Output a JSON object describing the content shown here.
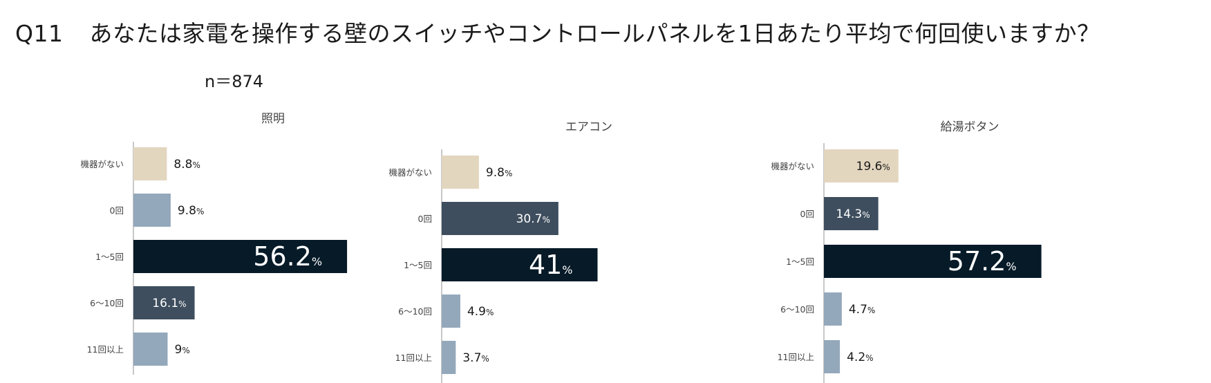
{
  "question": {
    "number": "Q11",
    "text": "あなたは家電を操作する壁のスイッチやコントロールパネルを1日あたり平均で何回使いますか？"
  },
  "sample_size": "n＝874",
  "colors": {
    "none": "#e3d6bf",
    "zero": "#94a8bb",
    "mid": "#3e4e5e",
    "top": "#061a28",
    "axis": "#c8c8c8"
  },
  "chart_data": [
    {
      "type": "bar",
      "orientation": "horizontal",
      "title": "照明",
      "categories": [
        "機器がない",
        "0回",
        "1〜5回",
        "6〜10回",
        "11回以上"
      ],
      "values": [
        8.8,
        9.8,
        56.2,
        16.1,
        9
      ],
      "value_labels": [
        "8.8",
        "9.8",
        "56.2",
        "16.1",
        "9"
      ],
      "unit": "%",
      "bar_colors": [
        "#e3d6bf",
        "#94a8bb",
        "#061a28",
        "#3e4e5e",
        "#94a8bb"
      ]
    },
    {
      "type": "bar",
      "orientation": "horizontal",
      "title": "エアコン",
      "categories": [
        "機器がない",
        "0回",
        "1〜5回",
        "6〜10回",
        "11回以上"
      ],
      "values": [
        9.8,
        30.7,
        41,
        4.9,
        3.7
      ],
      "value_labels": [
        "9.8",
        "30.7",
        "41",
        "4.9",
        "3.7"
      ],
      "unit": "%",
      "bar_colors": [
        "#e3d6bf",
        "#3e4e5e",
        "#061a28",
        "#94a8bb",
        "#94a8bb"
      ]
    },
    {
      "type": "bar",
      "orientation": "horizontal",
      "title": "給湯ボタン",
      "categories": [
        "機器がない",
        "0回",
        "1〜5回",
        "6〜10回",
        "11回以上"
      ],
      "values": [
        19.6,
        14.3,
        57.2,
        4.7,
        4.2
      ],
      "value_labels": [
        "19.6",
        "14.3",
        "57.2",
        "4.7",
        "4.2"
      ],
      "unit": "%",
      "bar_colors": [
        "#e3d6bf",
        "#3e4e5e",
        "#061a28",
        "#94a8bb",
        "#94a8bb"
      ]
    }
  ]
}
